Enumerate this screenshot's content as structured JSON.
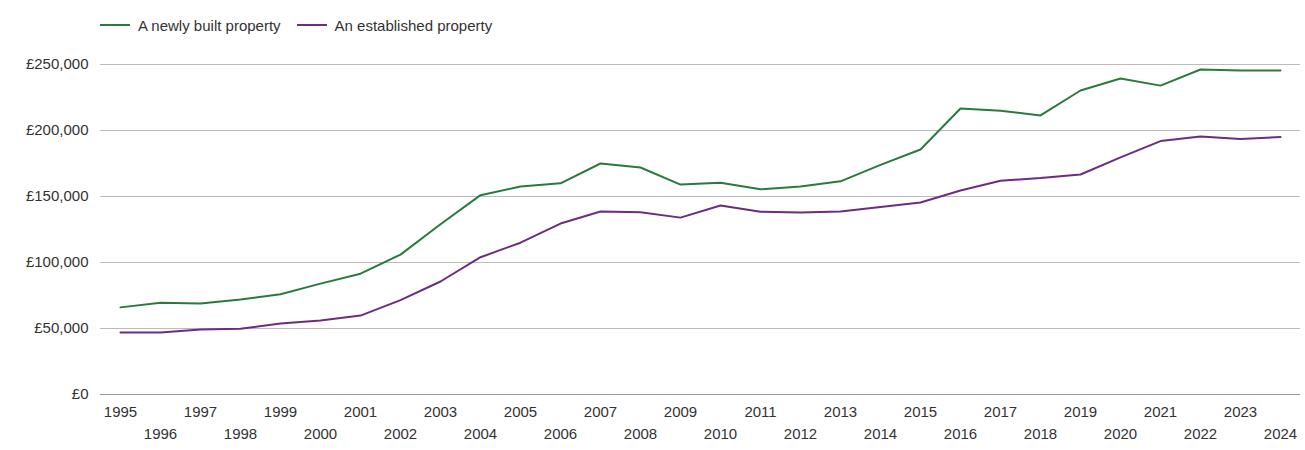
{
  "chart_data": {
    "type": "line",
    "x": [
      1995,
      1996,
      1997,
      1998,
      1999,
      2000,
      2001,
      2002,
      2003,
      2004,
      2005,
      2006,
      2007,
      2008,
      2009,
      2010,
      2011,
      2012,
      2013,
      2014,
      2015,
      2016,
      2017,
      2018,
      2019,
      2020,
      2021,
      2022,
      2023,
      2024
    ],
    "series": [
      {
        "name": "A newly built property",
        "color": "#2a7a3e",
        "values": [
          66000,
          69500,
          69000,
          72000,
          76000,
          84000,
          91500,
          106000,
          129000,
          151000,
          157500,
          160000,
          175000,
          172000,
          159000,
          160500,
          155500,
          157500,
          161500,
          174000,
          185600,
          216700,
          215000,
          211400,
          230300,
          239400,
          234000,
          246200,
          245500,
          245500
        ]
      },
      {
        "name": "An established property",
        "color": "#6b2c82",
        "values": [
          47000,
          47000,
          49200,
          49800,
          53800,
          56000,
          59800,
          71500,
          85600,
          104000,
          115000,
          129500,
          138600,
          138000,
          134000,
          143200,
          138500,
          137800,
          138600,
          142000,
          145500,
          154500,
          162000,
          164000,
          166700,
          179700,
          192000,
          195500,
          193500,
          195000
        ]
      }
    ],
    "xlim": [
      1995,
      2024
    ],
    "xticks": [
      1995,
      1996,
      1997,
      1998,
      1999,
      2000,
      2001,
      2002,
      2003,
      2004,
      2005,
      2006,
      2007,
      2008,
      2009,
      2010,
      2011,
      2012,
      2013,
      2014,
      2015,
      2016,
      2017,
      2018,
      2019,
      2020,
      2021,
      2022,
      2023,
      2024
    ],
    "ylim": [
      0,
      250000
    ],
    "yticks": [
      {
        "value": 0,
        "label": "£0"
      },
      {
        "value": 50000,
        "label": "£50,000"
      },
      {
        "value": 100000,
        "label": "£100,000"
      },
      {
        "value": 150000,
        "label": "£150,000"
      },
      {
        "value": 200000,
        "label": "£200,000"
      },
      {
        "value": 250000,
        "label": "£250,000"
      }
    ],
    "grid": true,
    "legend": "top-left"
  }
}
